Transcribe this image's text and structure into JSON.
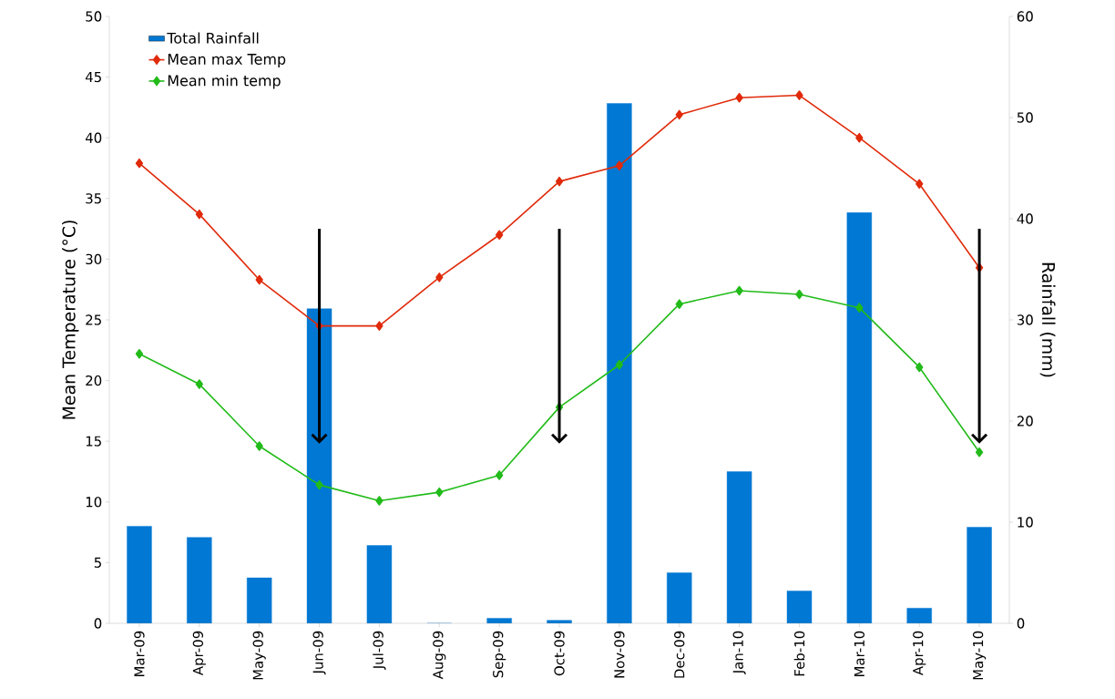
{
  "chart_data": {
    "type": "line",
    "categories": [
      "Mar-09",
      "Apr-09",
      "May-09",
      "Jun-09",
      "Jul-09",
      "Aug-09",
      "Sep-09",
      "Oct-09",
      "Nov-09",
      "Dec-09",
      "Jan-10",
      "Feb-10",
      "Mar-10",
      "Apr-10",
      "May-10"
    ],
    "series": [
      {
        "name": "Total Rainfall",
        "type": "bar",
        "axis": "y2",
        "color": "#0078d4",
        "values": [
          9.6,
          8.5,
          4.5,
          31.1,
          7.7,
          0,
          0.5,
          0.3,
          51.4,
          5.0,
          15.0,
          3.2,
          40.6,
          1.5,
          9.5
        ]
      },
      {
        "name": "Mean max Temp",
        "color": "#e02a0a",
        "values": [
          37.9,
          33.7,
          28.3,
          24.5,
          24.5,
          28.5,
          32.0,
          36.4,
          37.7,
          41.9,
          43.3,
          43.5,
          40.0,
          36.2,
          29.3
        ]
      },
      {
        "name": "Mean min temp",
        "color": "#22bb1a",
        "values": [
          22.2,
          19.7,
          14.6,
          11.4,
          10.1,
          10.8,
          12.2,
          17.8,
          21.3,
          26.3,
          27.4,
          27.1,
          26.0,
          21.1,
          14.1
        ]
      }
    ],
    "ylabel": "Mean Temperature (°C)",
    "y2label": "Rainfall (mm)",
    "ylim": [
      0,
      50
    ],
    "yticks": [
      0,
      5,
      10,
      15,
      20,
      25,
      30,
      35,
      40,
      45,
      50
    ],
    "y2lim": [
      0,
      60
    ],
    "y2ticks": [
      0,
      10,
      20,
      30,
      40,
      50,
      60
    ],
    "legend": "top left",
    "marker": "diamond",
    "line_style": "solid",
    "grid": false
  }
}
